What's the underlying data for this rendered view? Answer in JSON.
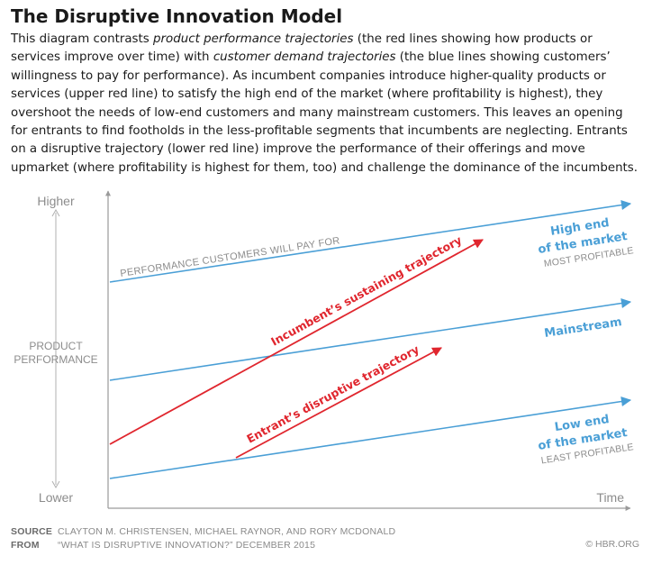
{
  "title": "The Disruptive Innovation Model",
  "intro": {
    "p1": "This diagram contrasts ",
    "em1": "product performance trajectories",
    "p2": " (the red lines showing how products or services improve over time) with ",
    "em2": "customer demand trajectories",
    "p3": " (the blue lines showing customers’ willingness to pay for performance). As incumbent companies introduce higher-quality products or services (upper red line) to satisfy the high end of the market (where profitability is highest), they overshoot the needs of low-end customers and many mainstream customers. This leaves an opening for entrants to find footholds in the less-profitable segments that incumbents are neglecting. Entrants on a disruptive trajectory (lower red line) improve the performance of their offerings and move upmarket (where profitability is highest for them, too) and challenge the dominance of the incumbents."
  },
  "axes": {
    "y_top": "Higher",
    "y_bottom": "Lower",
    "y_label_1": "PRODUCT",
    "y_label_2": "PERFORMANCE",
    "x_label": "Time"
  },
  "lines": {
    "demand_top_label": "PERFORMANCE CUSTOMERS WILL PAY FOR",
    "sustaining_label": "Incumbent’s sustaining trajectory",
    "disruptive_label": "Entrant’s disruptive trajectory"
  },
  "segments": {
    "high_1": "High end",
    "high_2": "of the market",
    "high_note": "MOST PROFITABLE",
    "main": "Mainstream",
    "low_1": "Low end",
    "low_2": "of the market",
    "low_note": "LEAST PROFITABLE"
  },
  "footer": {
    "source_key": "SOURCE",
    "source_val": "CLAYTON M. CHRISTENSEN, MICHAEL RAYNOR, AND RORY MCDONALD",
    "from_key": "FROM",
    "from_val": "“WHAT IS DISRUPTIVE INNOVATION?” DECEMBER 2015",
    "credit": "© HBR.ORG"
  },
  "colors": {
    "blue": "#4a9fd6",
    "red": "#e0262e",
    "axis": "#9a9a9a",
    "label_gray": "#8c8c8c"
  }
}
